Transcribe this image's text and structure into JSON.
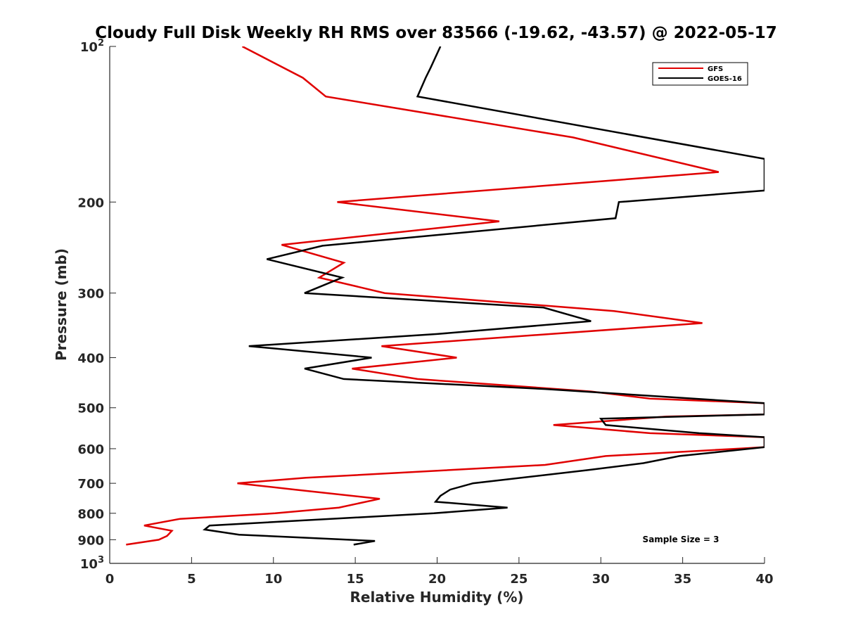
{
  "chart_data": {
    "type": "line",
    "title": "Cloudy Full Disk Weekly RH RMS over 83566 (-19.62, -43.57) @ 2022-05-17",
    "xlabel": "Relative Humidity (%)",
    "ylabel": "Pressure (mb)",
    "xlim": [
      0,
      40
    ],
    "ylim": [
      100,
      1000
    ],
    "yscale": "log",
    "y_reversed": true,
    "x_ticks": [
      0,
      5,
      10,
      15,
      20,
      25,
      30,
      35,
      40
    ],
    "x_tick_labels": [
      "0",
      "5",
      "10",
      "15",
      "20",
      "25",
      "30",
      "35",
      "40"
    ],
    "y_ticks": [
      100,
      200,
      300,
      400,
      500,
      600,
      700,
      800,
      900,
      1000
    ],
    "y_tick_labels": [
      "10²",
      "200",
      "300",
      "400",
      "500",
      "600",
      "700",
      "800",
      "900",
      "10³"
    ],
    "legend": {
      "position": "top-right",
      "entries": [
        "GFS",
        "GOES-16"
      ]
    },
    "annotations": [
      {
        "text": "Sample Size = 3",
        "position": "bottom-right"
      }
    ],
    "series": [
      {
        "name": "GFS",
        "color": "#e00000",
        "points": [
          [
            8.1,
            100
          ],
          [
            11.8,
            115
          ],
          [
            13.2,
            125
          ],
          [
            28.3,
            150
          ],
          [
            37.2,
            175
          ],
          [
            13.9,
            200
          ],
          [
            23.8,
            218
          ],
          [
            10.5,
            242
          ],
          [
            14.3,
            262
          ],
          [
            12.8,
            280
          ],
          [
            16.8,
            300
          ],
          [
            30.8,
            325
          ],
          [
            36.2,
            343
          ],
          [
            16.6,
            380
          ],
          [
            21.2,
            400
          ],
          [
            14.8,
            420
          ],
          [
            18.8,
            440
          ],
          [
            29.4,
            465
          ],
          [
            33.0,
            480
          ],
          [
            40.0,
            490
          ],
          [
            40.0,
            515
          ],
          [
            34.0,
            520
          ],
          [
            27.1,
            540
          ],
          [
            33.0,
            560
          ],
          [
            40.0,
            570
          ],
          [
            40.0,
            596
          ],
          [
            30.3,
            620
          ],
          [
            26.6,
            645
          ],
          [
            12.0,
            683
          ],
          [
            7.8,
            700
          ],
          [
            11.3,
            720
          ],
          [
            16.5,
            750
          ],
          [
            14.0,
            780
          ],
          [
            10.1,
            800
          ],
          [
            4.3,
            820
          ],
          [
            2.1,
            845
          ],
          [
            3.8,
            865
          ],
          [
            3.5,
            885
          ],
          [
            3.0,
            900
          ],
          [
            1.0,
            920
          ]
        ]
      },
      {
        "name": "GOES-16",
        "color": "#000000",
        "points": [
          [
            20.2,
            100
          ],
          [
            19.6,
            110
          ],
          [
            19.3,
            115
          ],
          [
            18.8,
            125
          ],
          [
            40.0,
            165
          ],
          [
            40.0,
            190
          ],
          [
            31.1,
            200
          ],
          [
            30.9,
            215
          ],
          [
            13.0,
            243
          ],
          [
            9.6,
            258
          ],
          [
            14.2,
            280
          ],
          [
            11.9,
            300
          ],
          [
            26.5,
            320
          ],
          [
            29.4,
            340
          ],
          [
            20.0,
            360
          ],
          [
            8.5,
            380
          ],
          [
            16.0,
            400
          ],
          [
            11.9,
            420
          ],
          [
            14.3,
            440
          ],
          [
            26.6,
            460
          ],
          [
            40.0,
            490
          ],
          [
            40.0,
            515
          ],
          [
            30.0,
            525
          ],
          [
            30.3,
            540
          ],
          [
            36.0,
            560
          ],
          [
            40.0,
            570
          ],
          [
            40.0,
            596
          ],
          [
            34.8,
            620
          ],
          [
            32.6,
            640
          ],
          [
            29.2,
            660
          ],
          [
            22.2,
            700
          ],
          [
            20.8,
            720
          ],
          [
            20.2,
            740
          ],
          [
            19.9,
            760
          ],
          [
            24.3,
            780
          ],
          [
            19.8,
            800
          ],
          [
            6.1,
            845
          ],
          [
            5.8,
            860
          ],
          [
            7.9,
            880
          ],
          [
            16.2,
            905
          ],
          [
            14.9,
            920
          ]
        ]
      }
    ]
  }
}
